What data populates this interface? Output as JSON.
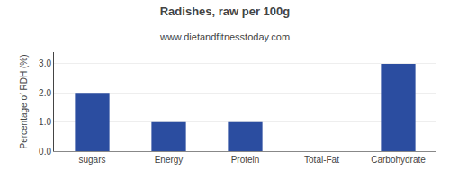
{
  "chart_data": {
    "type": "bar",
    "title": "Radishes, raw per 100g",
    "subtitle": "www.dietandfitnesstoday.com",
    "categories": [
      "sugars",
      "Energy",
      "Protein",
      "Total-Fat",
      "Carbohydrate"
    ],
    "values": [
      2.0,
      1.0,
      1.0,
      0.0,
      3.0
    ],
    "color": "#2b4da0",
    "ylabel": "Percentage of RDH (%)",
    "ylim": [
      0,
      3.4
    ],
    "yticks": [
      {
        "value": 0.0,
        "label": "0.0"
      },
      {
        "value": 1.0,
        "label": "1.0"
      },
      {
        "value": 2.0,
        "label": "2.0"
      },
      {
        "value": 3.0,
        "label": "3.0"
      }
    ],
    "grid": true
  }
}
